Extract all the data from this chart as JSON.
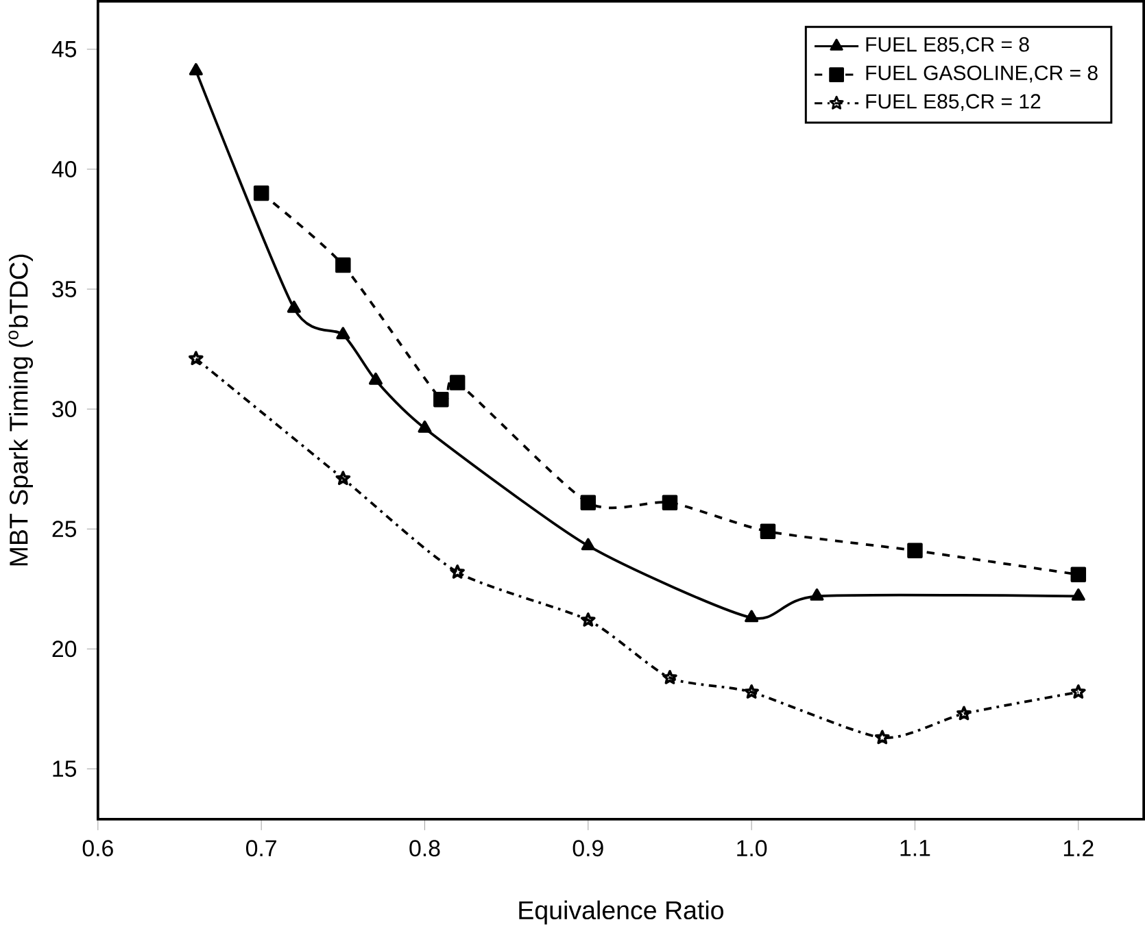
{
  "chart_data": {
    "type": "line",
    "xlabel": "Equivalence Ratio",
    "ylabel": "MBT Spark Timing  ($^{o}$bTDC)",
    "xlim": [
      0.6,
      1.24
    ],
    "ylim": [
      12.9,
      47
    ],
    "xticks": [
      0.6,
      0.7,
      0.8,
      0.9,
      {
        "value": 1.0,
        "label": "1.0"
      },
      1.1,
      1.2
    ],
    "yticks": [
      15,
      20,
      25,
      30,
      35,
      40,
      45
    ],
    "legend": "top right",
    "grid": false,
    "series": [
      {
        "name": "FUEL E85,CR = 8",
        "color": "#000000",
        "marker": "triangle",
        "line_style": "solid",
        "x": [
          0.66,
          0.72,
          0.75,
          0.77,
          0.8,
          0.9,
          1.0,
          1.04,
          1.2
        ],
        "values": [
          44.1,
          34.2,
          33.1,
          31.2,
          29.2,
          24.3,
          21.3,
          22.2,
          22.2
        ]
      },
      {
        "name": "FUEL GASOLINE,CR = 8",
        "color": "#000000",
        "marker": "square",
        "line_style": "dashed",
        "x": [
          0.7,
          0.75,
          0.81,
          0.82,
          0.9,
          0.95,
          1.01,
          1.1,
          1.2
        ],
        "values": [
          39,
          36,
          30.4,
          31.1,
          26.1,
          26.1,
          24.9,
          24.1,
          23.1
        ]
      },
      {
        "name": "FUEL E85,CR = 12",
        "color": "#000000",
        "marker": "star",
        "line_style": "dashdot",
        "x": [
          0.66,
          0.75,
          0.82,
          0.9,
          0.95,
          1.0,
          1.08,
          1.13,
          1.2
        ],
        "values": [
          32.1,
          27.1,
          23.2,
          21.2,
          18.8,
          18.2,
          16.3,
          17.3,
          18.2
        ]
      }
    ]
  }
}
